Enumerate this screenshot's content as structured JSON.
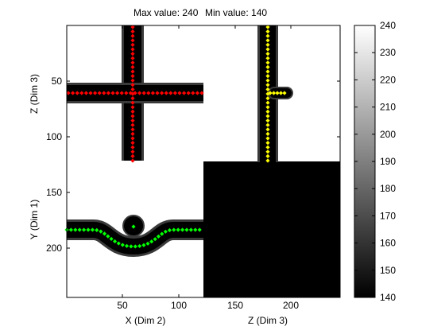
{
  "figure": {
    "title_max": "Max value: 240",
    "title_min": "Min value: 140"
  },
  "colors": {
    "bright": "#ffffff",
    "dark": "#000000",
    "gray_edge": "#3a3a3a",
    "path_red": "#ff0000",
    "path_yellow": "#ffff00",
    "path_green": "#00ff00"
  },
  "image_panel": {
    "xy_view": {
      "xlabel": "X (Dim 2)",
      "ylabel": "Y (Dim 1)",
      "xticks": [
        "50",
        "100"
      ],
      "yticks": [
        "150",
        "200"
      ]
    },
    "xz_view": {
      "ylabel": "Z (Dim 3)",
      "yticks": [
        "50",
        "100"
      ]
    },
    "zy_view": {
      "xlabel": "Z (Dim 3)",
      "xticks": [
        "150",
        "200"
      ]
    }
  },
  "chart_data": {
    "type": "heatmap",
    "title": "Max value: 240Min value: 140",
    "colormap": "gray",
    "clim": [
      140,
      240
    ],
    "colorbar_ticks": [
      140,
      150,
      160,
      170,
      180,
      190,
      200,
      210,
      220,
      230,
      240
    ],
    "colorbar_tick_labels": [
      "140",
      "150",
      "160",
      "170",
      "180",
      "190",
      "200",
      "210",
      "220",
      "230",
      "240"
    ]
  }
}
